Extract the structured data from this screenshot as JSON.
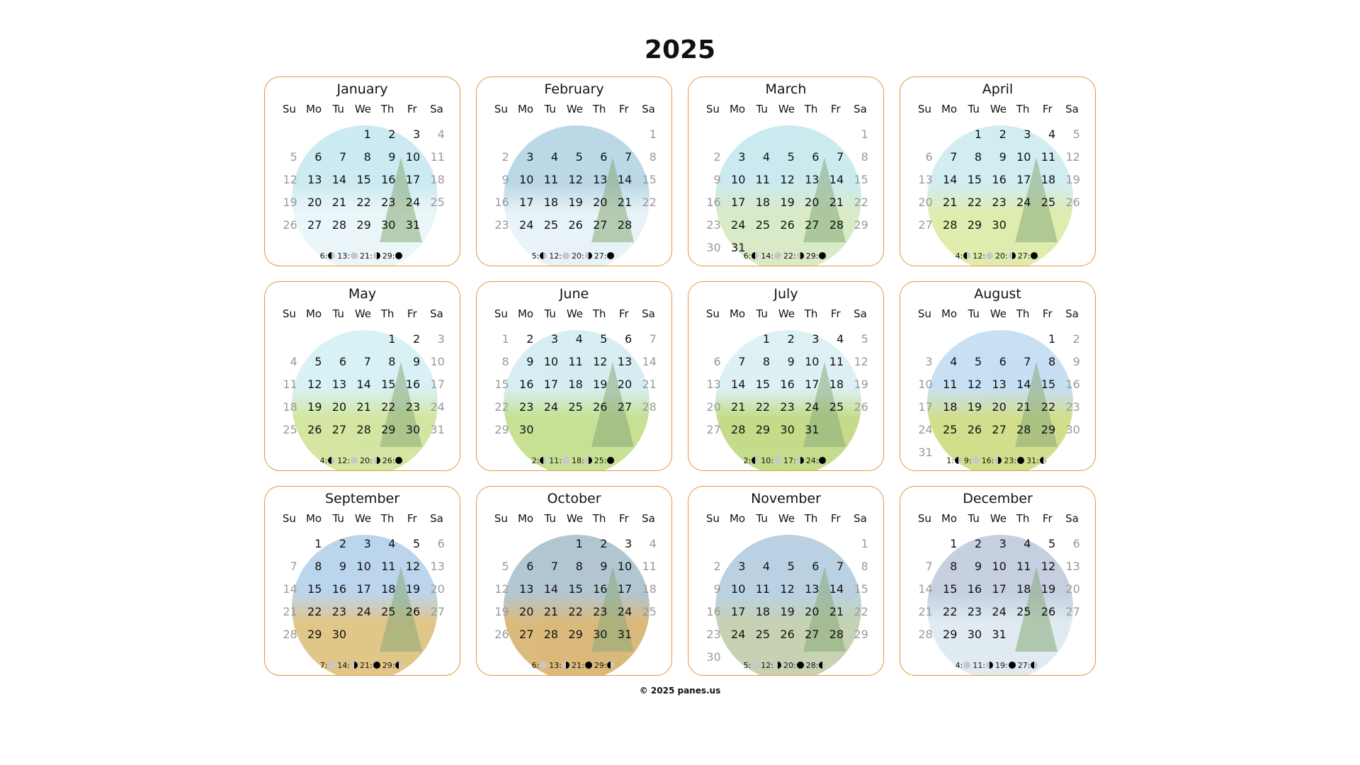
{
  "year": "2025",
  "weekdays": [
    "Su",
    "Mo",
    "Tu",
    "We",
    "Th",
    "Fr",
    "Sa"
  ],
  "months": [
    {
      "name": "January",
      "start": 3,
      "days": 31,
      "sky": "#bfe6ee",
      "ground": "#e6f4f8",
      "moons": [
        [
          "6",
          "fq"
        ],
        [
          "13",
          "full"
        ],
        [
          "21",
          "lq"
        ],
        [
          "29",
          "new"
        ]
      ]
    },
    {
      "name": "February",
      "start": 6,
      "days": 28,
      "sky": "#a9cfe0",
      "ground": "#e3f1f6",
      "moons": [
        [
          "5",
          "fq"
        ],
        [
          "12",
          "full"
        ],
        [
          "20",
          "lq"
        ],
        [
          "27",
          "new"
        ]
      ]
    },
    {
      "name": "March",
      "start": 6,
      "days": 31,
      "sky": "#bfe6ec",
      "ground": "#cfe6b8",
      "moons": [
        [
          "6",
          "fq"
        ],
        [
          "14",
          "full"
        ],
        [
          "22",
          "lq"
        ],
        [
          "29",
          "new"
        ]
      ]
    },
    {
      "name": "April",
      "start": 2,
      "days": 30,
      "sky": "#c6e9f0",
      "ground": "#d7e89a",
      "moons": [
        [
          "4",
          "fq"
        ],
        [
          "12",
          "full"
        ],
        [
          "20",
          "lq"
        ],
        [
          "27",
          "new"
        ]
      ]
    },
    {
      "name": "May",
      "start": 4,
      "days": 31,
      "sky": "#cfeef3",
      "ground": "#c9e08a",
      "moons": [
        [
          "4",
          "fq"
        ],
        [
          "12",
          "full"
        ],
        [
          "20",
          "lq"
        ],
        [
          "26",
          "new"
        ]
      ]
    },
    {
      "name": "June",
      "start": 0,
      "days": 30,
      "sky": "#cdebf0",
      "ground": "#b9d97a",
      "moons": [
        [
          "2",
          "fq"
        ],
        [
          "11",
          "full"
        ],
        [
          "18",
          "lq"
        ],
        [
          "25",
          "new"
        ]
      ]
    },
    {
      "name": "July",
      "start": 2,
      "days": 31,
      "sky": "#d5eef2",
      "ground": "#b6d46e",
      "moons": [
        [
          "2",
          "fq"
        ],
        [
          "10",
          "full"
        ],
        [
          "17",
          "lq"
        ],
        [
          "24",
          "new"
        ]
      ]
    },
    {
      "name": "August",
      "start": 5,
      "days": 31,
      "sky": "#b9d8f0",
      "ground": "#c8d670",
      "moons": [
        [
          "1",
          "fq"
        ],
        [
          "9",
          "full"
        ],
        [
          "16",
          "lq"
        ],
        [
          "23",
          "new"
        ],
        [
          "31",
          "fq"
        ]
      ]
    },
    {
      "name": "September",
      "start": 1,
      "days": 30,
      "sky": "#a9cbe8",
      "ground": "#d9b86a",
      "moons": [
        [
          "7",
          "full"
        ],
        [
          "14",
          "lq"
        ],
        [
          "21",
          "new"
        ],
        [
          "29",
          "fq"
        ]
      ]
    },
    {
      "name": "October",
      "start": 3,
      "days": 31,
      "sky": "#9fb8c8",
      "ground": "#d3a85a",
      "moons": [
        [
          "6",
          "full"
        ],
        [
          "13",
          "lq"
        ],
        [
          "21",
          "new"
        ],
        [
          "29",
          "fq"
        ]
      ]
    },
    {
      "name": "November",
      "start": 6,
      "days": 30,
      "sky": "#a8c6dc",
      "ground": "#b9c8a0",
      "moons": [
        [
          "5",
          "full"
        ],
        [
          "12",
          "lq"
        ],
        [
          "20",
          "new"
        ],
        [
          "28",
          "fq"
        ]
      ]
    },
    {
      "name": "December",
      "start": 1,
      "days": 31,
      "sky": "#b8c4d8",
      "ground": "#d8e6ee",
      "moons": [
        [
          "4",
          "full"
        ],
        [
          "11",
          "lq"
        ],
        [
          "19",
          "new"
        ],
        [
          "27",
          "fq"
        ]
      ]
    }
  ],
  "footer": "© 2025 panes.us"
}
